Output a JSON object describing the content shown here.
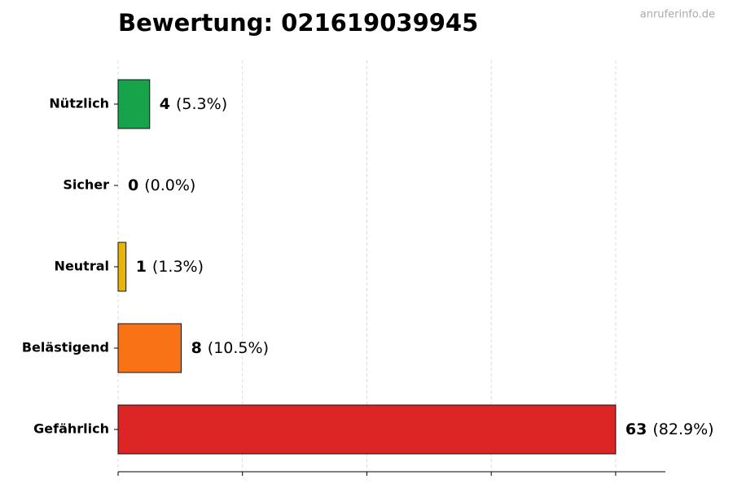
{
  "chart_data": {
    "type": "hbar",
    "title": "Bewertung: 021619039945",
    "watermark": "anruferinfo.de",
    "categories": [
      "Nützlich",
      "Sicher",
      "Neutral",
      "Belästigend",
      "Gefährlich"
    ],
    "values": [
      4,
      0,
      1,
      8,
      63
    ],
    "percent_labels": [
      "(5.3%)",
      "(0.0%)",
      "(1.3%)",
      "(10.5%)",
      "(82.9%)"
    ],
    "colors": [
      "#16a34a",
      "#3b82f6",
      "#eab308",
      "#f97316",
      "#dc2626"
    ],
    "xlim": [
      0,
      69.3
    ],
    "xticks": [
      0,
      15.75,
      31.5,
      47.25,
      63
    ],
    "grid": true
  }
}
